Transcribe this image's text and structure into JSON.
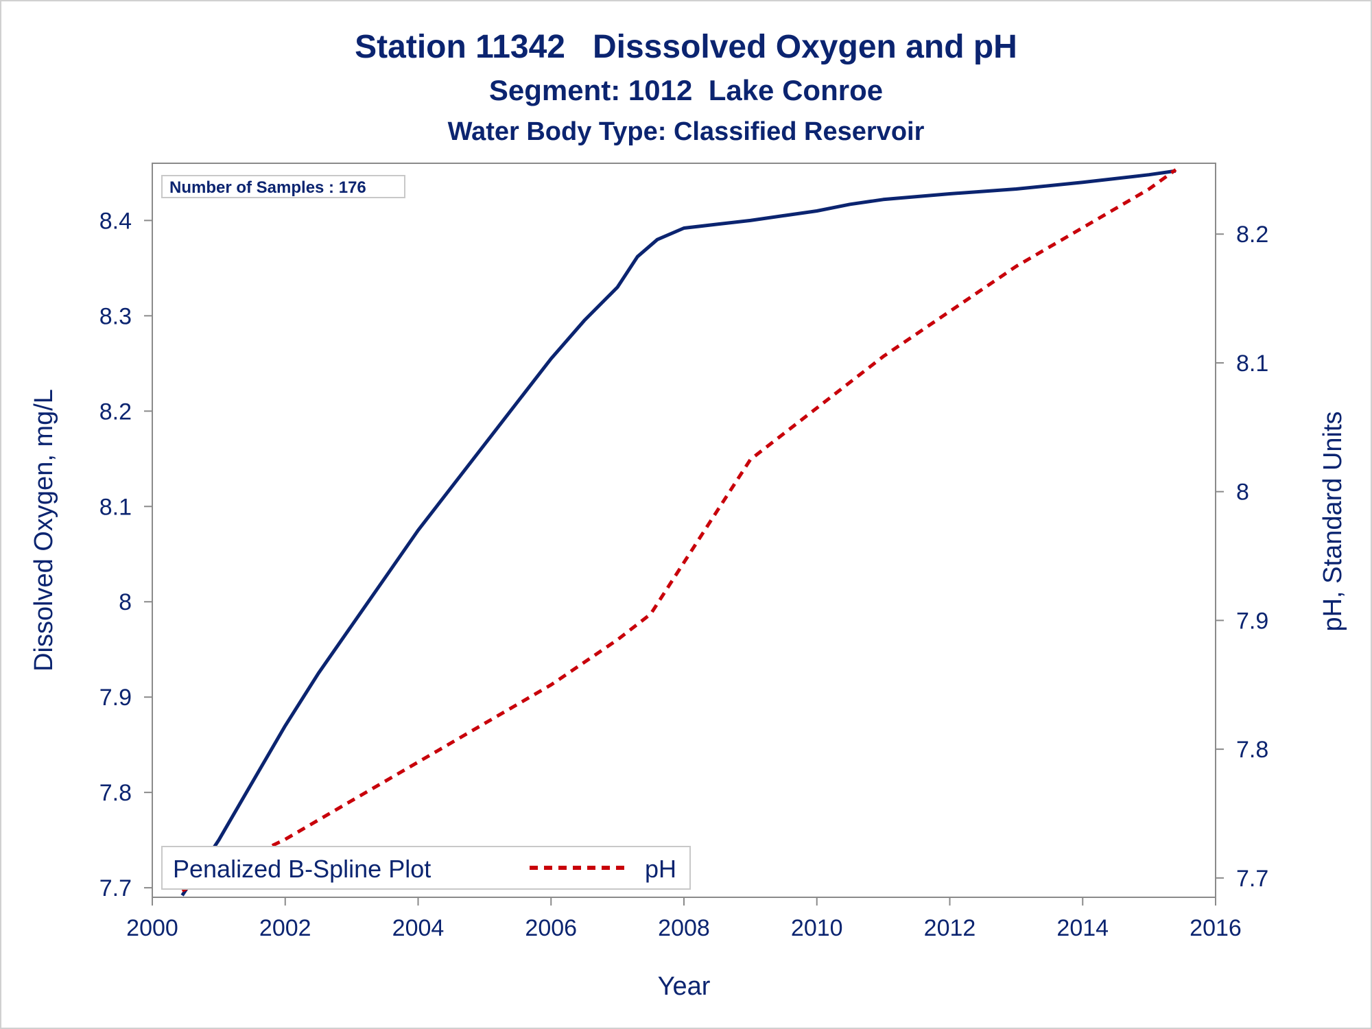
{
  "chart_data": {
    "type": "line",
    "title": "Station 11342   Disssolved Oxygen and pH",
    "subtitle": "Segment: 1012  Lake Conroe",
    "subtitle2": "Water Body Type: Classified Reservoir",
    "xlabel": "Year",
    "ylabel_left": "Dissolved Oxygen, mg/L",
    "ylabel_right": "pH, Standard Units",
    "xlim": [
      2000,
      2016
    ],
    "ylim_left": [
      7.69,
      8.46
    ],
    "ylim_right": [
      7.685,
      8.255
    ],
    "x_ticks": [
      2000,
      2002,
      2004,
      2006,
      2008,
      2010,
      2012,
      2014,
      2016
    ],
    "y_left_ticks": [
      7.7,
      7.8,
      7.9,
      8,
      8.1,
      8.2,
      8.3,
      8.4
    ],
    "y_right_ticks": [
      7.7,
      7.8,
      7.9,
      8,
      8.1,
      8.2
    ],
    "grid": false,
    "annotation": "Number of Samples : 176",
    "legend": {
      "position": "bottom-left",
      "label": "Penalized B-Spline Plot",
      "entry": "pH"
    },
    "series": [
      {
        "axis": "left",
        "color": "#0b2470",
        "style": "solid",
        "x": [
          2000.45,
          2001,
          2001.5,
          2002,
          2002.5,
          2003,
          2003.5,
          2004,
          2004.5,
          2005,
          2005.5,
          2006,
          2006.5,
          2007,
          2007.3,
          2007.6,
          2008,
          2008.5,
          2009,
          2009.5,
          2010,
          2010.5,
          2011,
          2012,
          2013,
          2014,
          2015,
          2015.4
        ],
        "y": [
          7.692,
          7.75,
          7.81,
          7.87,
          7.925,
          7.975,
          8.025,
          8.075,
          8.12,
          8.165,
          8.21,
          8.255,
          8.295,
          8.33,
          8.362,
          8.38,
          8.392,
          8.396,
          8.4,
          8.405,
          8.41,
          8.417,
          8.422,
          8.428,
          8.433,
          8.44,
          8.448,
          8.452
        ]
      },
      {
        "name": "pH",
        "axis": "right",
        "color": "#c8000a",
        "style": "dashed",
        "x": [
          2000.45,
          2001,
          2002,
          2003,
          2004,
          2005,
          2006,
          2007,
          2007.5,
          2008,
          2008.5,
          2009,
          2010,
          2011,
          2012,
          2013,
          2014,
          2015,
          2015.4
        ],
        "y": [
          7.69,
          7.705,
          7.73,
          7.76,
          7.79,
          7.82,
          7.85,
          7.885,
          7.905,
          7.945,
          7.985,
          8.025,
          8.065,
          8.105,
          8.14,
          8.175,
          8.205,
          8.235,
          8.25
        ]
      }
    ]
  }
}
